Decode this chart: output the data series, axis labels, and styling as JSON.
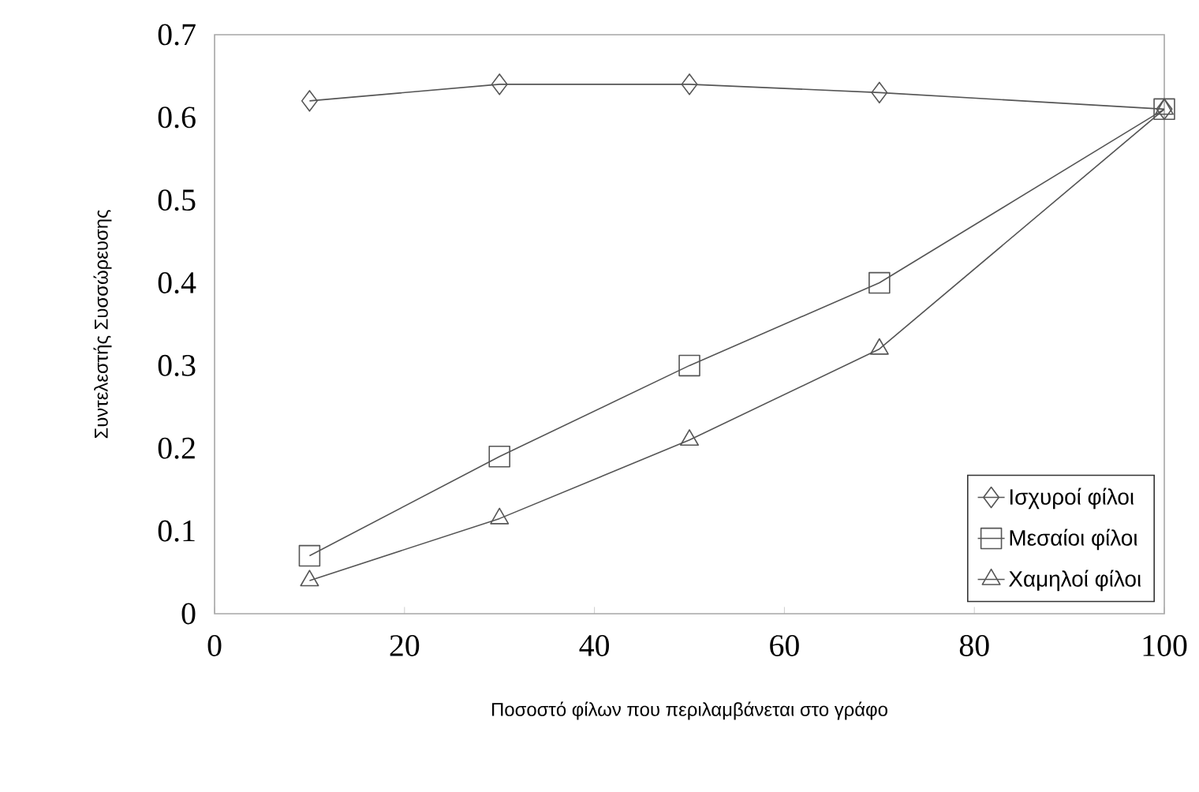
{
  "chart_data": {
    "type": "line",
    "xlabel": "Ποσοστό φίλων που περιλαμβάνεται στο γράφο",
    "ylabel": "Συντελεστής Συσσώρευσης",
    "x": [
      10,
      30,
      50,
      70,
      100
    ],
    "series": [
      {
        "name": "Ισχυροί φίλοι",
        "color": "#555555",
        "marker": "diamond",
        "values": [
          0.62,
          0.64,
          0.64,
          0.63,
          0.61
        ]
      },
      {
        "name": "Μεσαίοι φίλοι",
        "color": "#555555",
        "marker": "square",
        "values": [
          0.07,
          0.19,
          0.3,
          0.4,
          0.61
        ]
      },
      {
        "name": "Χαμηλοί φίλοι",
        "color": "#555555",
        "marker": "triangle",
        "values": [
          0.04,
          0.115,
          0.21,
          0.32,
          0.61
        ]
      }
    ],
    "xlim": [
      0,
      100
    ],
    "ylim": [
      0,
      0.7
    ],
    "xticks": [
      0,
      20,
      40,
      60,
      80,
      100
    ],
    "yticks": [
      0,
      0.1,
      0.2,
      0.3,
      0.4,
      0.5,
      0.6,
      0.7
    ],
    "grid": false,
    "legend": "bottom right",
    "line_style": "solid"
  }
}
